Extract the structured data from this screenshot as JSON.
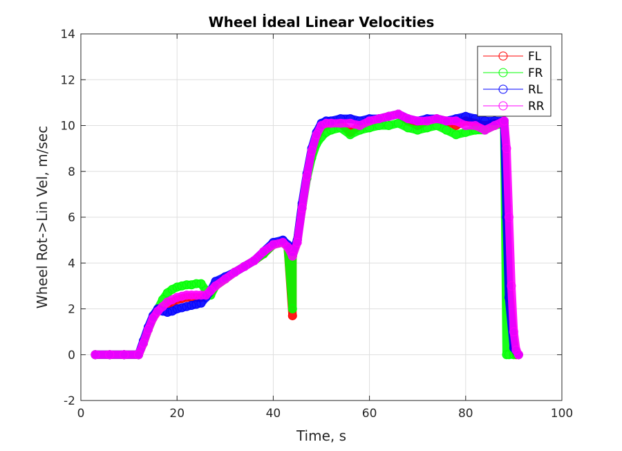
{
  "chart_data": {
    "type": "scatter",
    "title": "Wheel İdeal Linear Velocities",
    "xlabel": "Time, s",
    "ylabel": "Wheel Rot->Lin Vel, m/sec",
    "xlim": [
      0,
      100
    ],
    "ylim": [
      -2,
      14
    ],
    "xticks": [
      "0",
      "20",
      "40",
      "60",
      "80",
      "100"
    ],
    "yticks": [
      "-2",
      "0",
      "2",
      "4",
      "6",
      "8",
      "10",
      "12",
      "14"
    ],
    "grid": true,
    "legend_position": "top-right",
    "marker": "circle",
    "series": [
      {
        "name": "FL",
        "color": "#ff0000",
        "x": [
          3,
          6,
          9,
          12,
          13,
          14,
          15,
          16,
          17,
          18,
          19,
          20,
          21,
          22,
          23,
          24,
          25,
          26,
          27,
          28,
          30,
          32,
          34,
          36,
          38,
          40,
          42,
          43,
          44,
          44,
          45,
          46,
          47,
          48,
          49,
          50,
          51,
          52,
          54,
          56,
          58,
          60,
          62,
          64,
          66,
          68,
          70,
          72,
          74,
          76,
          78,
          80,
          82,
          84,
          86,
          88,
          88.5,
          89,
          90,
          90.5,
          91
        ],
        "y": [
          0,
          0,
          0,
          0,
          0.5,
          1.1,
          1.6,
          1.9,
          2.1,
          2.2,
          2.3,
          2.4,
          2.45,
          2.5,
          2.5,
          2.5,
          2.5,
          2.6,
          2.7,
          3.0,
          3.3,
          3.6,
          3.85,
          4.1,
          4.4,
          4.8,
          4.9,
          4.7,
          1.7,
          4.3,
          5.0,
          6.5,
          7.8,
          8.8,
          9.5,
          9.9,
          10.0,
          10.1,
          10.1,
          9.7,
          10.0,
          10.2,
          10.3,
          10.4,
          10.5,
          10.2,
          10.0,
          10.2,
          10.3,
          10.2,
          10.0,
          10.2,
          10.1,
          10.0,
          10.1,
          10.1,
          6.5,
          3.0,
          0.5,
          0,
          0
        ]
      },
      {
        "name": "FR",
        "color": "#00ff00",
        "x": [
          3,
          6,
          9,
          12,
          13,
          14,
          15,
          16,
          17,
          18,
          19,
          20,
          21,
          22,
          23,
          24,
          25,
          26,
          27,
          28,
          30,
          32,
          34,
          36,
          38,
          40,
          42,
          43,
          44,
          44,
          45,
          46,
          47,
          48,
          49,
          50,
          51,
          52,
          54,
          56,
          58,
          60,
          62,
          64,
          66,
          68,
          70,
          72,
          74,
          76,
          78,
          80,
          82,
          84,
          86,
          88,
          88.5,
          89,
          90
        ],
        "y": [
          0,
          0,
          0,
          0,
          0.5,
          1.1,
          1.6,
          2.0,
          2.4,
          2.7,
          2.85,
          2.95,
          3.0,
          3.05,
          3.05,
          3.1,
          3.1,
          2.8,
          2.6,
          3.0,
          3.3,
          3.6,
          3.85,
          4.1,
          4.4,
          4.8,
          4.9,
          4.7,
          2.0,
          4.3,
          5.0,
          6.4,
          7.7,
          8.6,
          9.2,
          9.5,
          9.7,
          9.8,
          9.9,
          9.6,
          9.8,
          9.9,
          10.0,
          10.0,
          10.1,
          9.9,
          9.8,
          9.9,
          10.0,
          9.8,
          9.6,
          9.7,
          9.8,
          9.8,
          10.0,
          10.1,
          0,
          0,
          0
        ]
      },
      {
        "name": "RL",
        "color": "#0000ff",
        "x": [
          3,
          6,
          9,
          12,
          13,
          14,
          15,
          16,
          17,
          18,
          19,
          20,
          21,
          22,
          23,
          24,
          25,
          26,
          27,
          28,
          30,
          32,
          34,
          36,
          38,
          40,
          42,
          43,
          44,
          45,
          46,
          47,
          48,
          49,
          50,
          51,
          52,
          54,
          56,
          58,
          60,
          62,
          64,
          66,
          68,
          70,
          72,
          74,
          76,
          78,
          80,
          82,
          84,
          86,
          88,
          88.5,
          89,
          90,
          91
        ],
        "y": [
          0,
          0,
          0,
          0,
          0.6,
          1.2,
          1.7,
          2.0,
          1.9,
          1.85,
          1.9,
          2.0,
          2.05,
          2.1,
          2.15,
          2.2,
          2.25,
          2.5,
          2.8,
          3.2,
          3.4,
          3.6,
          3.85,
          4.1,
          4.5,
          4.9,
          5.0,
          4.8,
          4.5,
          5.0,
          6.6,
          7.9,
          9.0,
          9.7,
          10.1,
          10.2,
          10.2,
          10.3,
          10.3,
          10.2,
          10.3,
          10.3,
          10.4,
          10.5,
          10.3,
          10.2,
          10.3,
          10.3,
          10.2,
          10.3,
          10.4,
          10.3,
          10.2,
          10.2,
          10.2,
          6.0,
          2.5,
          0.3,
          0
        ]
      },
      {
        "name": "RR",
        "color": "#ff00ff",
        "x": [
          3,
          6,
          9,
          12,
          13,
          14,
          15,
          16,
          17,
          18,
          19,
          20,
          21,
          22,
          23,
          24,
          25,
          26,
          27,
          28,
          30,
          32,
          34,
          36,
          38,
          40,
          42,
          43,
          44,
          45,
          46,
          47,
          48,
          49,
          50,
          51,
          52,
          54,
          56,
          58,
          60,
          62,
          64,
          66,
          68,
          70,
          72,
          74,
          76,
          78,
          80,
          82,
          84,
          86,
          88,
          88.5,
          89,
          89.5,
          90,
          90.5,
          91
        ],
        "y": [
          0,
          0,
          0,
          0,
          0.5,
          1.1,
          1.6,
          1.9,
          2.1,
          2.3,
          2.4,
          2.5,
          2.55,
          2.6,
          2.6,
          2.6,
          2.6,
          2.6,
          2.8,
          3.0,
          3.3,
          3.6,
          3.85,
          4.1,
          4.5,
          4.8,
          4.9,
          4.7,
          4.3,
          4.9,
          6.4,
          7.8,
          8.9,
          9.6,
          10.0,
          10.1,
          10.1,
          10.1,
          10.1,
          10.0,
          10.2,
          10.3,
          10.4,
          10.5,
          10.3,
          10.2,
          10.2,
          10.3,
          10.2,
          10.2,
          10.0,
          10.0,
          9.8,
          10.0,
          10.2,
          9.0,
          6.0,
          3.0,
          1.0,
          0.2,
          0
        ]
      }
    ]
  }
}
